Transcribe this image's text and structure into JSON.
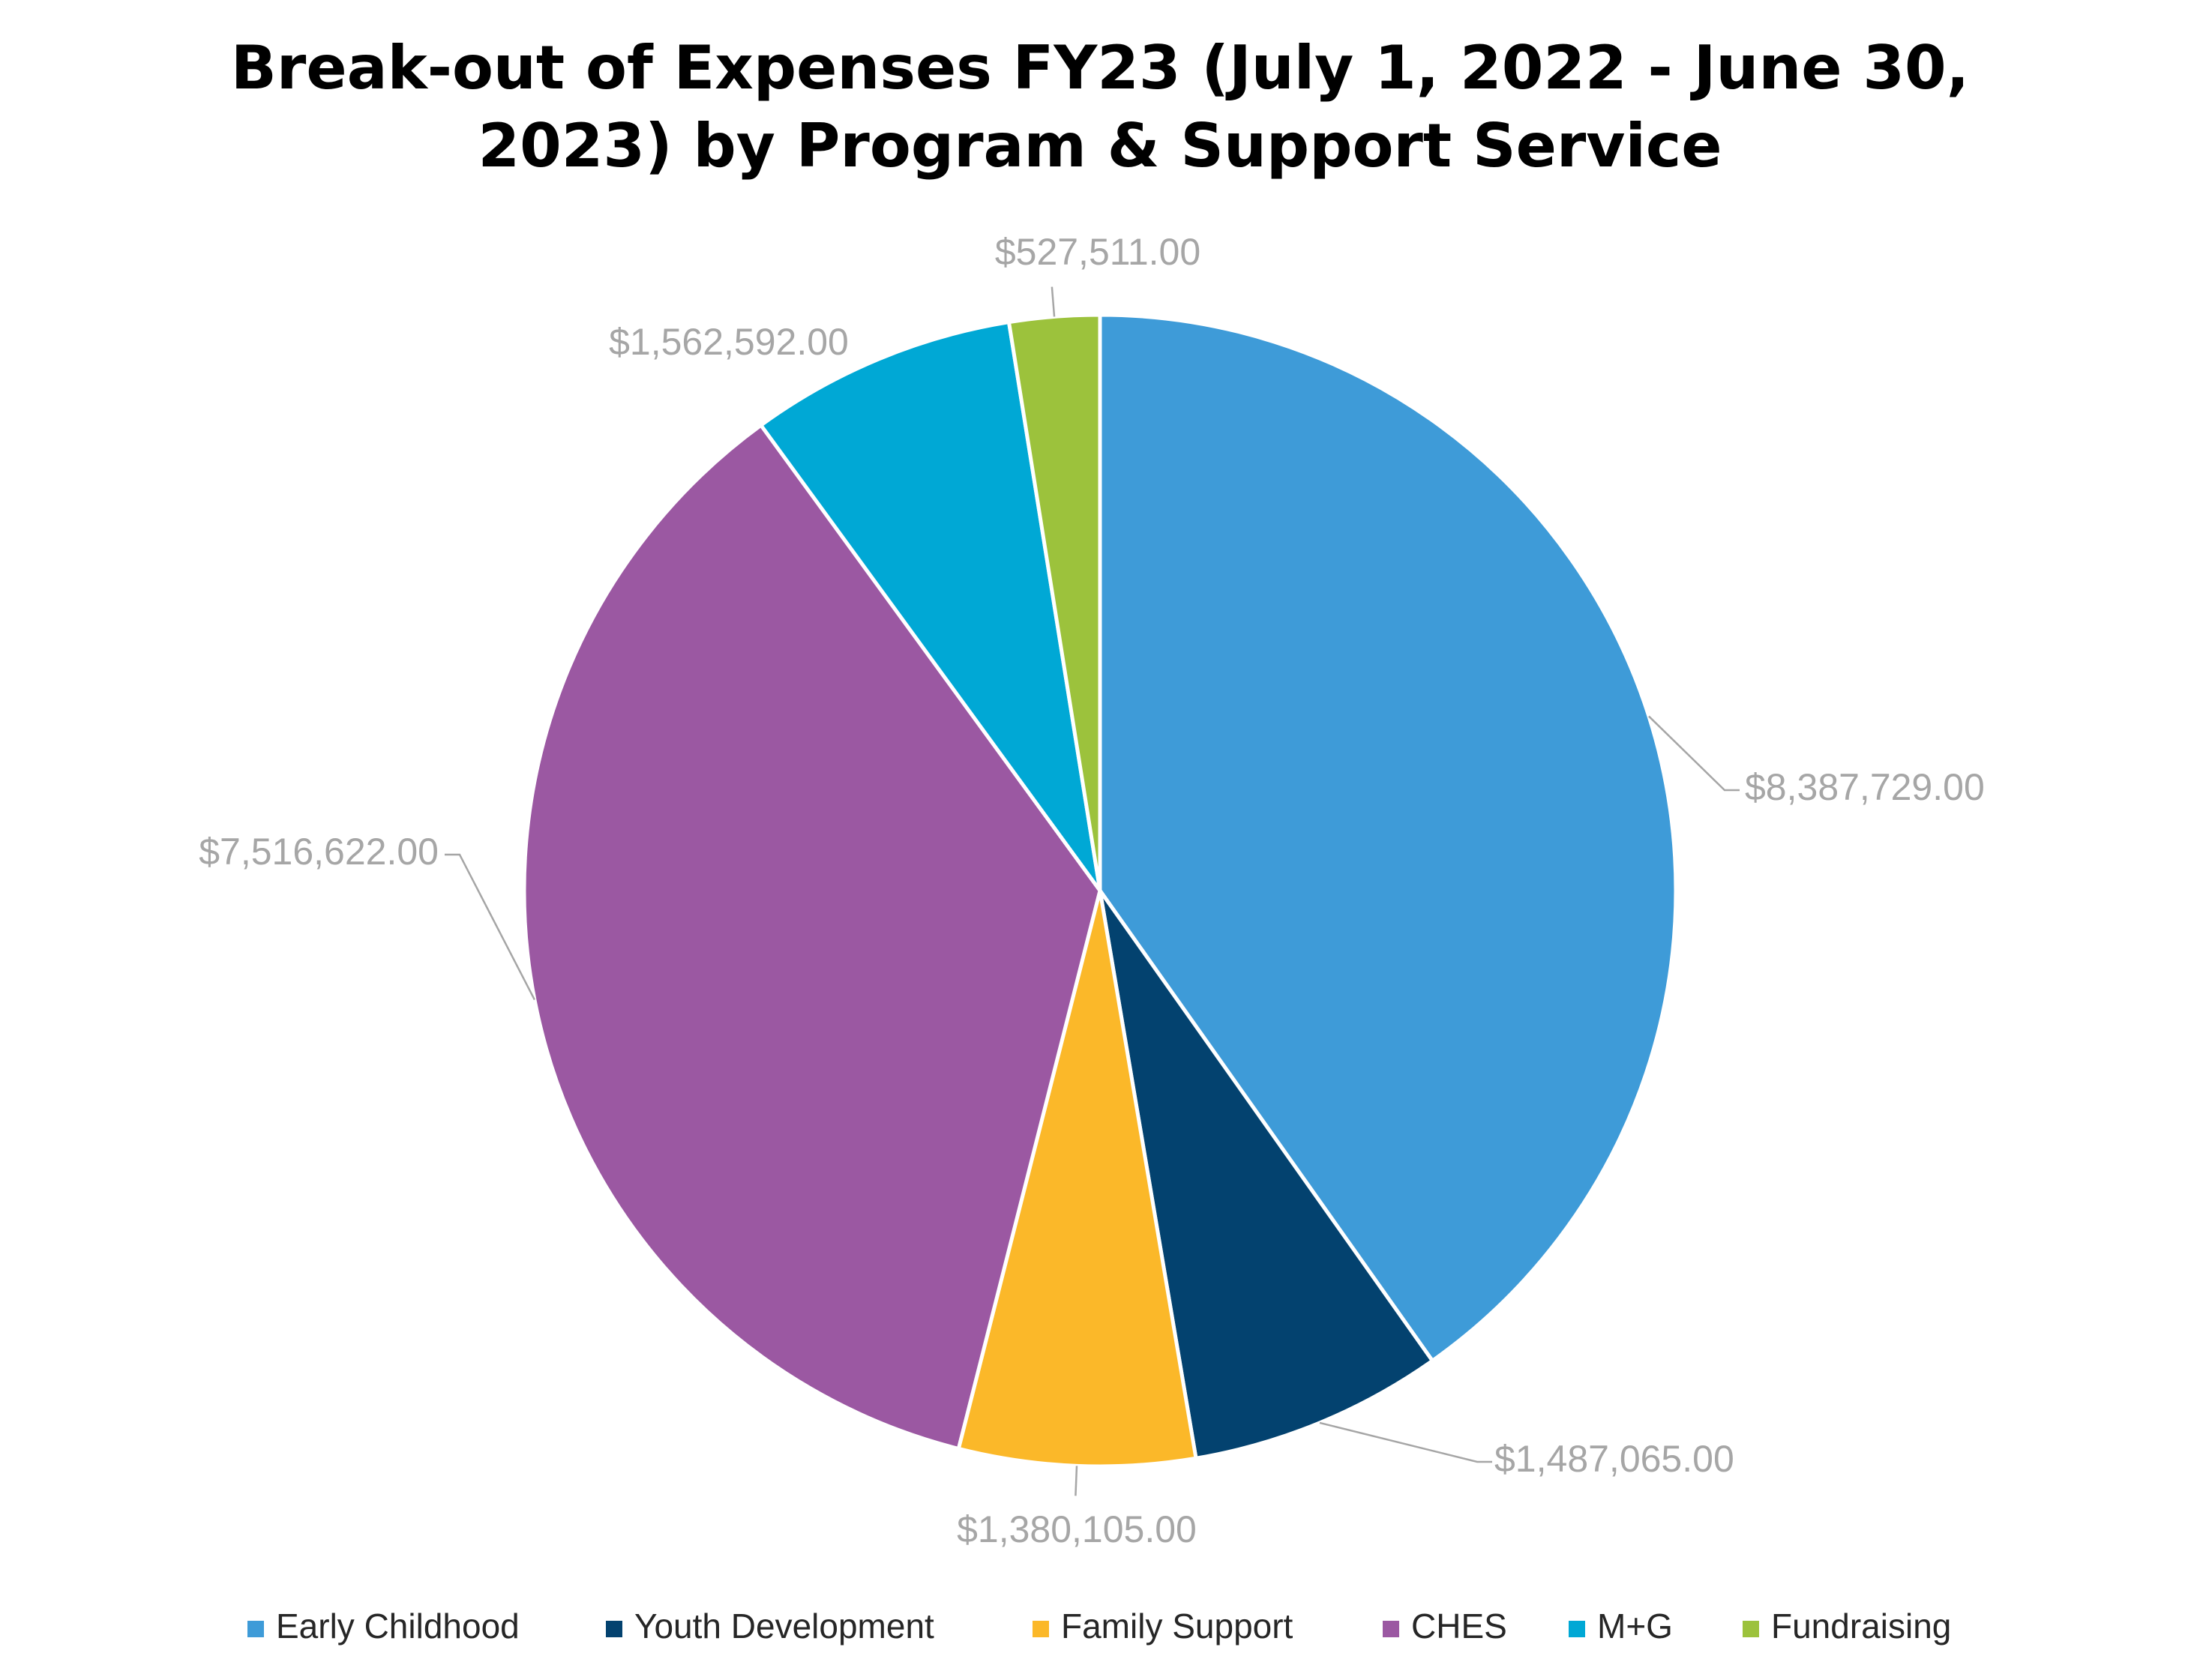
{
  "chart_data": {
    "type": "pie",
    "title_lines": [
      "Break-out of Expenses FY23 (July 1, 2022 - June 30,",
      "2023) by Program & Support Service"
    ],
    "categories": [
      "Early Childhood",
      "Youth Development",
      "Family Support",
      "CHES",
      "M+G",
      "Fundraising"
    ],
    "values": [
      8387729,
      1487065,
      1380105,
      7516622,
      1562592,
      527511
    ],
    "data_labels": [
      "$8,387,729.00",
      "$1,487,065.00",
      "$1,380,105.00",
      "$7,516,622.00",
      "$1,562,592.00",
      "$527,511.00"
    ],
    "colors": [
      "#3E9BD8",
      "#03426F",
      "#FBB829",
      "#9B58A2",
      "#00A8D5",
      "#9CC23C"
    ],
    "legend_position": "bottom",
    "start_angle": "12 o'clock",
    "direction": "clockwise"
  }
}
